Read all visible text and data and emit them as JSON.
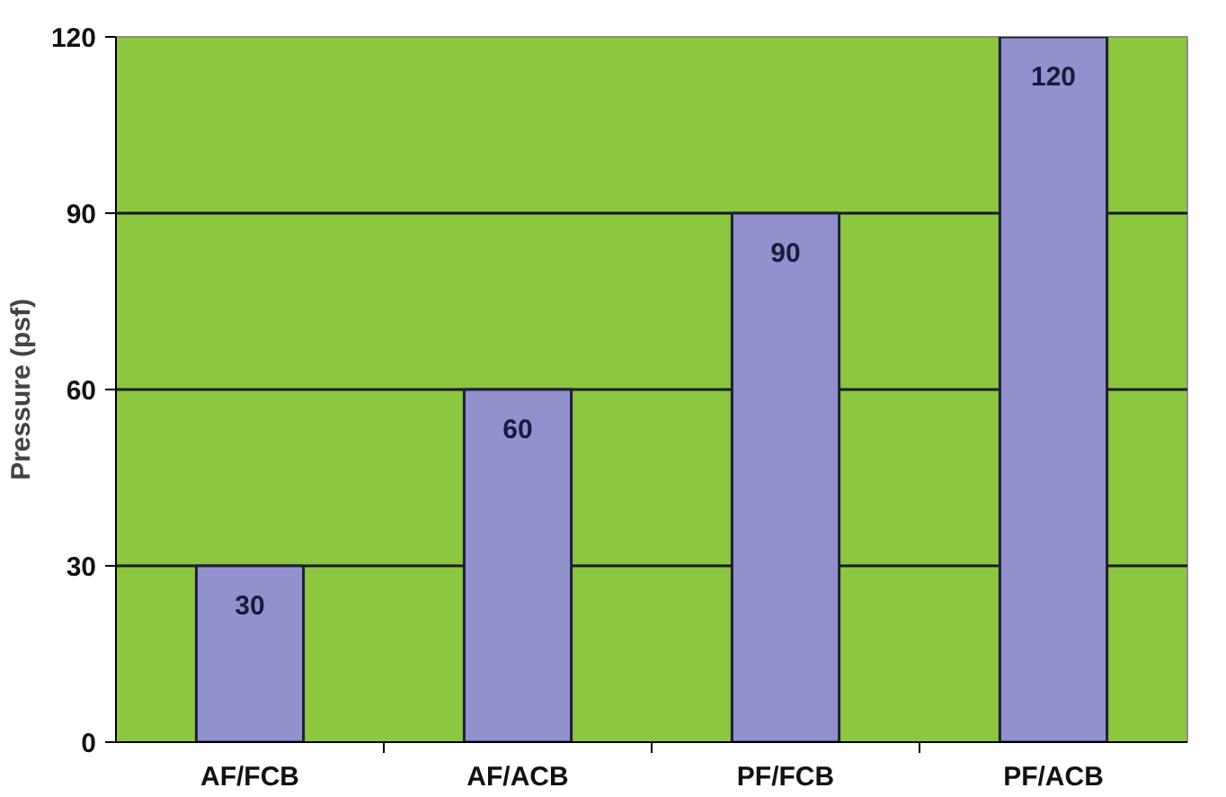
{
  "chart_data": {
    "type": "bar",
    "categories": [
      "AF/FCB",
      "AF/ACB",
      "PF/FCB",
      "PF/ACB"
    ],
    "values": [
      30,
      60,
      90,
      120
    ],
    "color": "#9191cd",
    "ylabel": "Pressure (psf)",
    "ylim": [
      0,
      120
    ],
    "yticks": [
      0,
      30,
      60,
      90,
      120
    ],
    "grid": "y",
    "data_labels": true
  }
}
